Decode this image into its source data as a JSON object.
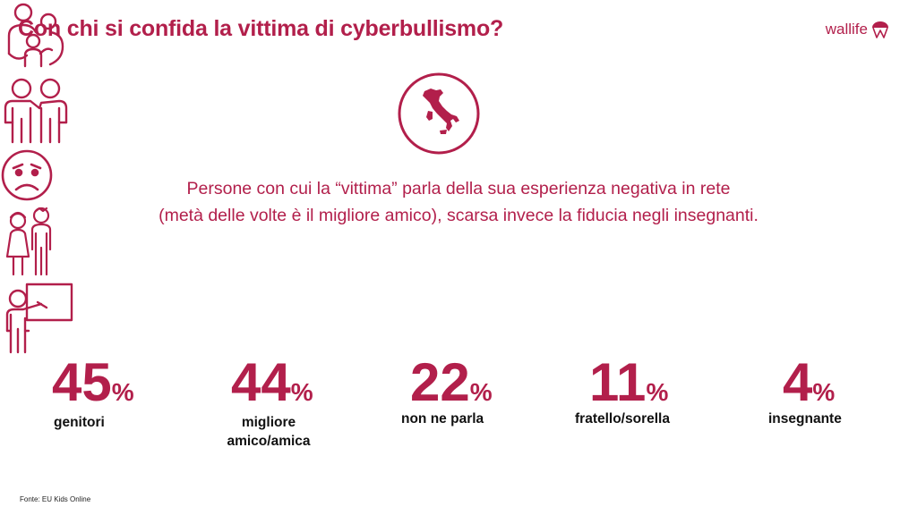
{
  "header": {
    "title": "Con chi si confida la vittima di cyberbullismo?",
    "logo_text": "wallife",
    "logo_icon": "parachute-w-icon"
  },
  "subtitle": {
    "line1": "Persone con cui la “vittima” parla della sua esperienza negativa in rete",
    "line2": "(metà delle volte è il migliore amico), scarsa invece la fiducia negli insegnanti."
  },
  "stats": [
    {
      "icon": "family-icon",
      "value": "45",
      "unit": "%",
      "label": "genitori"
    },
    {
      "icon": "friends-icon",
      "value": "44",
      "unit": "%",
      "label": "migliore amico/amica"
    },
    {
      "icon": "worried-face-icon",
      "value": "22",
      "unit": "%",
      "label": "non ne parla"
    },
    {
      "icon": "siblings-icon",
      "value": "11",
      "unit": "%",
      "label": "fratello/sorella"
    },
    {
      "icon": "teacher-icon",
      "value": "4",
      "unit": "%",
      "label": "insegnante"
    }
  ],
  "footer": {
    "source": "Fonte: EU Kids Online"
  },
  "colors": {
    "accent": "#b21f4b",
    "text": "#111111"
  }
}
